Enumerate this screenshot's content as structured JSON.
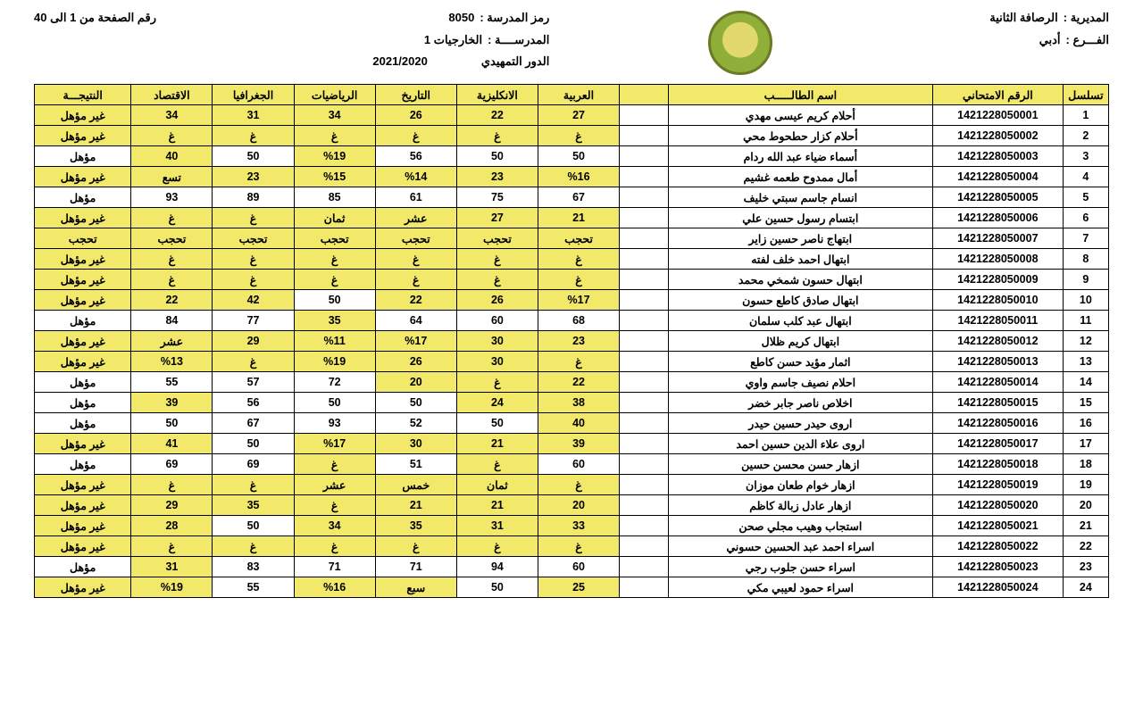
{
  "header": {
    "directorate_label": "المديرية :",
    "directorate_value": "الرصافة الثانية",
    "branch_label": "الفـــرع :",
    "branch_value": "أدبي",
    "school_code_label": "رمز المدرسة :",
    "school_code_value": "8050",
    "school_label": "المدرســــة :",
    "school_value": "الخارجيات 1",
    "round_label": "الدور التمهيدي",
    "page_label": "رقم الصفحة من 1 الى 40",
    "year": "2021/2020"
  },
  "columns": [
    "تسلسل",
    "الرقم الامتحاني",
    "اسم الطالـــــب",
    "",
    "العربية",
    "الانكليزية",
    "التاريخ",
    "الرياضيات",
    "الجغرافيا",
    "الاقتصاد",
    "النتيجـــة"
  ],
  "rows": [
    {
      "seq": "1",
      "exam": "1421228050001",
      "name": "أحلام كريم عيسى مهدي",
      "cells": [
        {
          "v": "27",
          "hl": true
        },
        {
          "v": "22",
          "hl": true
        },
        {
          "v": "26",
          "hl": true
        },
        {
          "v": "34",
          "hl": true
        },
        {
          "v": "31",
          "hl": true
        },
        {
          "v": "34",
          "hl": true
        }
      ],
      "result": {
        "v": "غير مؤهل",
        "hl": true
      }
    },
    {
      "seq": "2",
      "exam": "1421228050002",
      "name": "أحلام كزار حطحوط محي",
      "cells": [
        {
          "v": "غ",
          "hl": true
        },
        {
          "v": "غ",
          "hl": true
        },
        {
          "v": "غ",
          "hl": true
        },
        {
          "v": "غ",
          "hl": true
        },
        {
          "v": "غ",
          "hl": true
        },
        {
          "v": "غ",
          "hl": true
        }
      ],
      "result": {
        "v": "غير مؤهل",
        "hl": true
      }
    },
    {
      "seq": "3",
      "exam": "1421228050003",
      "name": "أسماء ضياء عبد الله ردام",
      "cells": [
        {
          "v": "50",
          "hl": false
        },
        {
          "v": "50",
          "hl": false
        },
        {
          "v": "56",
          "hl": false
        },
        {
          "v": "%19",
          "hl": true
        },
        {
          "v": "50",
          "hl": false
        },
        {
          "v": "40",
          "hl": true
        }
      ],
      "result": {
        "v": "مؤهل",
        "hl": false
      }
    },
    {
      "seq": "4",
      "exam": "1421228050004",
      "name": "أمال ممدوح طعمه غشيم",
      "cells": [
        {
          "v": "%16",
          "hl": true
        },
        {
          "v": "23",
          "hl": true
        },
        {
          "v": "%14",
          "hl": true
        },
        {
          "v": "%15",
          "hl": true
        },
        {
          "v": "23",
          "hl": true
        },
        {
          "v": "تسع",
          "hl": true
        }
      ],
      "result": {
        "v": "غير مؤهل",
        "hl": true
      }
    },
    {
      "seq": "5",
      "exam": "1421228050005",
      "name": "انسام جاسم سبتي خليف",
      "cells": [
        {
          "v": "67",
          "hl": false
        },
        {
          "v": "75",
          "hl": false
        },
        {
          "v": "61",
          "hl": false
        },
        {
          "v": "85",
          "hl": false
        },
        {
          "v": "89",
          "hl": false
        },
        {
          "v": "93",
          "hl": false
        }
      ],
      "result": {
        "v": "مؤهل",
        "hl": false
      }
    },
    {
      "seq": "6",
      "exam": "1421228050006",
      "name": "ابتسام رسول حسين علي",
      "cells": [
        {
          "v": "21",
          "hl": true
        },
        {
          "v": "27",
          "hl": true
        },
        {
          "v": "عشر",
          "hl": true
        },
        {
          "v": "ثمان",
          "hl": true
        },
        {
          "v": "غ",
          "hl": true
        },
        {
          "v": "غ",
          "hl": true
        }
      ],
      "result": {
        "v": "غير مؤهل",
        "hl": true
      }
    },
    {
      "seq": "7",
      "exam": "1421228050007",
      "name": "ابتهاج ناصر حسين زاير",
      "cells": [
        {
          "v": "تحجب",
          "hl": true
        },
        {
          "v": "تحجب",
          "hl": true
        },
        {
          "v": "تحجب",
          "hl": true
        },
        {
          "v": "تحجب",
          "hl": true
        },
        {
          "v": "تحجب",
          "hl": true
        },
        {
          "v": "تحجب",
          "hl": true
        }
      ],
      "result": {
        "v": "تحجب",
        "hl": true
      }
    },
    {
      "seq": "8",
      "exam": "1421228050008",
      "name": "ابتهال احمد خلف لفته",
      "cells": [
        {
          "v": "غ",
          "hl": true
        },
        {
          "v": "غ",
          "hl": true
        },
        {
          "v": "غ",
          "hl": true
        },
        {
          "v": "غ",
          "hl": true
        },
        {
          "v": "غ",
          "hl": true
        },
        {
          "v": "غ",
          "hl": true
        }
      ],
      "result": {
        "v": "غير مؤهل",
        "hl": true
      }
    },
    {
      "seq": "9",
      "exam": "1421228050009",
      "name": "ابتهال حسون شمخي محمد",
      "cells": [
        {
          "v": "غ",
          "hl": true
        },
        {
          "v": "غ",
          "hl": true
        },
        {
          "v": "غ",
          "hl": true
        },
        {
          "v": "غ",
          "hl": true
        },
        {
          "v": "غ",
          "hl": true
        },
        {
          "v": "غ",
          "hl": true
        }
      ],
      "result": {
        "v": "غير مؤهل",
        "hl": true
      }
    },
    {
      "seq": "10",
      "exam": "1421228050010",
      "name": "ابتهال صادق كاطع حسون",
      "cells": [
        {
          "v": "%17",
          "hl": true
        },
        {
          "v": "26",
          "hl": true
        },
        {
          "v": "22",
          "hl": true
        },
        {
          "v": "50",
          "hl": false
        },
        {
          "v": "42",
          "hl": true
        },
        {
          "v": "22",
          "hl": true
        }
      ],
      "result": {
        "v": "غير مؤهل",
        "hl": true
      }
    },
    {
      "seq": "11",
      "exam": "1421228050011",
      "name": "ابتهال عبد كلب سلمان",
      "cells": [
        {
          "v": "68",
          "hl": false
        },
        {
          "v": "60",
          "hl": false
        },
        {
          "v": "64",
          "hl": false
        },
        {
          "v": "35",
          "hl": true
        },
        {
          "v": "77",
          "hl": false
        },
        {
          "v": "84",
          "hl": false
        }
      ],
      "result": {
        "v": "مؤهل",
        "hl": false
      }
    },
    {
      "seq": "12",
      "exam": "1421228050012",
      "name": "ابتهال كريم ظلال",
      "cells": [
        {
          "v": "23",
          "hl": true
        },
        {
          "v": "30",
          "hl": true
        },
        {
          "v": "%17",
          "hl": true
        },
        {
          "v": "%11",
          "hl": true
        },
        {
          "v": "29",
          "hl": true
        },
        {
          "v": "عشر",
          "hl": true
        }
      ],
      "result": {
        "v": "غير مؤهل",
        "hl": true
      }
    },
    {
      "seq": "13",
      "exam": "1421228050013",
      "name": "اثمار مؤيد حسن كاطع",
      "cells": [
        {
          "v": "غ",
          "hl": true
        },
        {
          "v": "30",
          "hl": true
        },
        {
          "v": "26",
          "hl": true
        },
        {
          "v": "%19",
          "hl": true
        },
        {
          "v": "غ",
          "hl": true
        },
        {
          "v": "%13",
          "hl": true
        }
      ],
      "result": {
        "v": "غير مؤهل",
        "hl": true
      }
    },
    {
      "seq": "14",
      "exam": "1421228050014",
      "name": "احلام نصيف جاسم واوي",
      "cells": [
        {
          "v": "22",
          "hl": true
        },
        {
          "v": "غ",
          "hl": true
        },
        {
          "v": "20",
          "hl": true
        },
        {
          "v": "72",
          "hl": false
        },
        {
          "v": "57",
          "hl": false
        },
        {
          "v": "55",
          "hl": false
        }
      ],
      "result": {
        "v": "مؤهل",
        "hl": false
      }
    },
    {
      "seq": "15",
      "exam": "1421228050015",
      "name": "اخلاص ناصر جابر خضر",
      "cells": [
        {
          "v": "38",
          "hl": true
        },
        {
          "v": "24",
          "hl": true
        },
        {
          "v": "50",
          "hl": false
        },
        {
          "v": "50",
          "hl": false
        },
        {
          "v": "56",
          "hl": false
        },
        {
          "v": "39",
          "hl": true
        }
      ],
      "result": {
        "v": "مؤهل",
        "hl": false
      }
    },
    {
      "seq": "16",
      "exam": "1421228050016",
      "name": "اروى حيدر حسين حيدر",
      "cells": [
        {
          "v": "40",
          "hl": true
        },
        {
          "v": "50",
          "hl": false
        },
        {
          "v": "52",
          "hl": false
        },
        {
          "v": "93",
          "hl": false
        },
        {
          "v": "67",
          "hl": false
        },
        {
          "v": "50",
          "hl": false
        }
      ],
      "result": {
        "v": "مؤهل",
        "hl": false
      }
    },
    {
      "seq": "17",
      "exam": "1421228050017",
      "name": "اروى علاء الدين حسين احمد",
      "cells": [
        {
          "v": "39",
          "hl": true
        },
        {
          "v": "21",
          "hl": true
        },
        {
          "v": "30",
          "hl": true
        },
        {
          "v": "%17",
          "hl": true
        },
        {
          "v": "50",
          "hl": false
        },
        {
          "v": "41",
          "hl": true
        }
      ],
      "result": {
        "v": "غير مؤهل",
        "hl": true
      }
    },
    {
      "seq": "18",
      "exam": "1421228050018",
      "name": "ازهار حسن محسن حسين",
      "cells": [
        {
          "v": "60",
          "hl": false
        },
        {
          "v": "غ",
          "hl": true
        },
        {
          "v": "51",
          "hl": false
        },
        {
          "v": "غ",
          "hl": true
        },
        {
          "v": "69",
          "hl": false
        },
        {
          "v": "69",
          "hl": false
        }
      ],
      "result": {
        "v": "مؤهل",
        "hl": false
      }
    },
    {
      "seq": "19",
      "exam": "1421228050019",
      "name": "ازهار خوام طعان موزان",
      "cells": [
        {
          "v": "غ",
          "hl": true
        },
        {
          "v": "ثمان",
          "hl": true
        },
        {
          "v": "خمس",
          "hl": true
        },
        {
          "v": "عشر",
          "hl": true
        },
        {
          "v": "غ",
          "hl": true
        },
        {
          "v": "غ",
          "hl": true
        }
      ],
      "result": {
        "v": "غير مؤهل",
        "hl": true
      }
    },
    {
      "seq": "20",
      "exam": "1421228050020",
      "name": "ازهار عادل زبالة كاظم",
      "cells": [
        {
          "v": "20",
          "hl": true
        },
        {
          "v": "21",
          "hl": true
        },
        {
          "v": "21",
          "hl": true
        },
        {
          "v": "غ",
          "hl": true
        },
        {
          "v": "35",
          "hl": true
        },
        {
          "v": "29",
          "hl": true
        }
      ],
      "result": {
        "v": "غير مؤهل",
        "hl": true
      }
    },
    {
      "seq": "21",
      "exam": "1421228050021",
      "name": "استجاب وهيب مجلي صحن",
      "cells": [
        {
          "v": "33",
          "hl": true
        },
        {
          "v": "31",
          "hl": true
        },
        {
          "v": "35",
          "hl": true
        },
        {
          "v": "34",
          "hl": true
        },
        {
          "v": "50",
          "hl": false
        },
        {
          "v": "28",
          "hl": true
        }
      ],
      "result": {
        "v": "غير مؤهل",
        "hl": true
      }
    },
    {
      "seq": "22",
      "exam": "1421228050022",
      "name": "اسراء احمد عبد الحسين حسوني",
      "cells": [
        {
          "v": "غ",
          "hl": true
        },
        {
          "v": "غ",
          "hl": true
        },
        {
          "v": "غ",
          "hl": true
        },
        {
          "v": "غ",
          "hl": true
        },
        {
          "v": "غ",
          "hl": true
        },
        {
          "v": "غ",
          "hl": true
        }
      ],
      "result": {
        "v": "غير مؤهل",
        "hl": true
      }
    },
    {
      "seq": "23",
      "exam": "1421228050023",
      "name": "اسراء حسن جلوب رجي",
      "cells": [
        {
          "v": "60",
          "hl": false
        },
        {
          "v": "94",
          "hl": false
        },
        {
          "v": "71",
          "hl": false
        },
        {
          "v": "71",
          "hl": false
        },
        {
          "v": "83",
          "hl": false
        },
        {
          "v": "31",
          "hl": true
        }
      ],
      "result": {
        "v": "مؤهل",
        "hl": false
      }
    },
    {
      "seq": "24",
      "exam": "1421228050024",
      "name": "اسراء حمود لعيبي مكي",
      "cells": [
        {
          "v": "25",
          "hl": true
        },
        {
          "v": "50",
          "hl": false
        },
        {
          "v": "سبع",
          "hl": true
        },
        {
          "v": "%16",
          "hl": true
        },
        {
          "v": "55",
          "hl": false
        },
        {
          "v": "%19",
          "hl": true
        }
      ],
      "result": {
        "v": "غير مؤهل",
        "hl": true
      }
    }
  ]
}
